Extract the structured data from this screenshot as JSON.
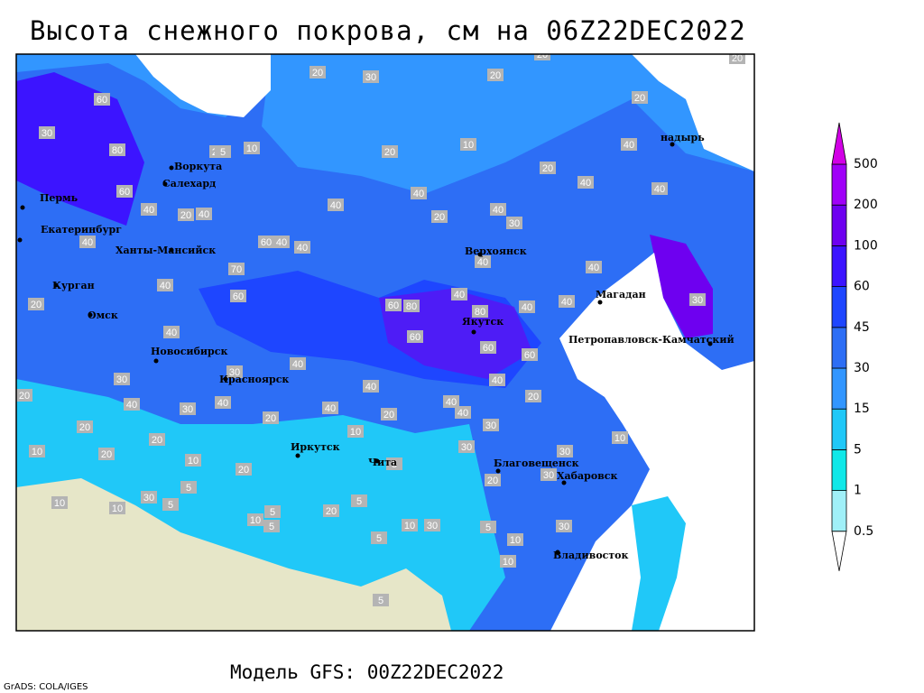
{
  "header": {
    "title": "Высота снежного покрова, см на 06Z22DEC2022"
  },
  "footer": {
    "model": "Модель GFS: 00Z22DEC2022",
    "credit": "GrADS: COLA/IGES"
  },
  "cities": [
    "Воркута",
    "Салехард",
    "Пермь",
    "Екатеринбург",
    "Ханты-Мансийск",
    "Курган",
    "Омск",
    "Новосибирск",
    "Красноярск",
    "Иркутск",
    "Чита",
    "Благовещенск",
    "Хабаровск",
    "Владивосток",
    "Якутск",
    "Верхоянск",
    "Магадан",
    "Петропавловск-Камчатский",
    "надырь"
  ],
  "contour_labels": [
    30,
    80,
    60,
    60,
    40,
    40,
    20,
    40,
    60,
    70,
    40,
    30,
    40,
    20,
    20,
    10,
    20,
    20,
    30,
    40,
    30,
    20,
    40,
    40,
    40,
    20,
    40,
    40,
    20,
    30,
    20,
    20,
    10,
    40,
    30,
    40,
    40,
    60,
    80,
    60,
    80,
    60,
    60,
    40,
    40,
    40,
    40,
    40,
    30,
    30,
    20,
    30,
    20,
    30,
    30,
    5,
    10,
    10,
    10,
    30,
    5,
    5,
    5,
    20,
    5,
    10,
    5,
    20,
    10,
    5,
    5,
    30,
    10,
    10,
    10,
    5,
    40,
    40,
    40,
    40,
    30,
    20,
    10,
    5,
    60,
    40,
    40,
    20,
    20,
    20,
    20,
    20,
    10,
    20,
    40
  ],
  "legend": {
    "levels": [
      0.5,
      1,
      5,
      15,
      30,
      45,
      60,
      100,
      200,
      500
    ],
    "colors": [
      "#ffffff",
      "#a0f0f8",
      "#10e8e8",
      "#20c8f8",
      "#3296ff",
      "#2d6ef5",
      "#1e46ff",
      "#3c14ff",
      "#6e00f0",
      "#a000f8",
      "#d200e6"
    ]
  }
}
